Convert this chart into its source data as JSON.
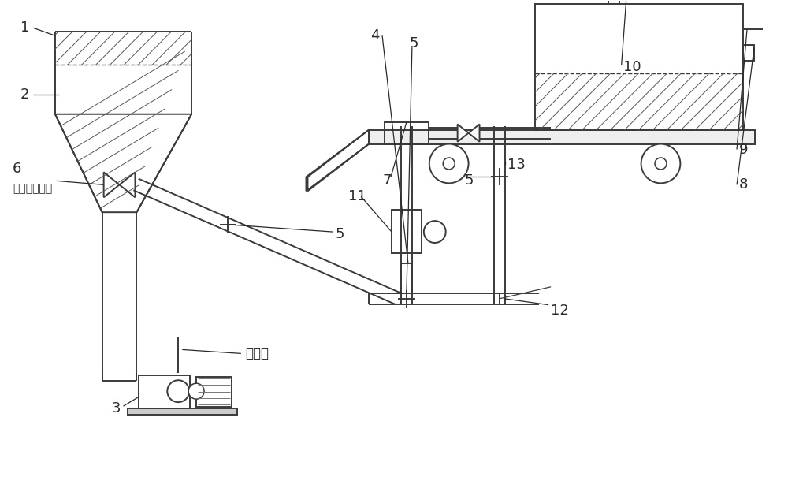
{
  "bg_color": "#ffffff",
  "line_color": "#3a3a3a",
  "lw": 1.4,
  "figsize": [
    10.0,
    6.24
  ],
  "dpi": 100
}
